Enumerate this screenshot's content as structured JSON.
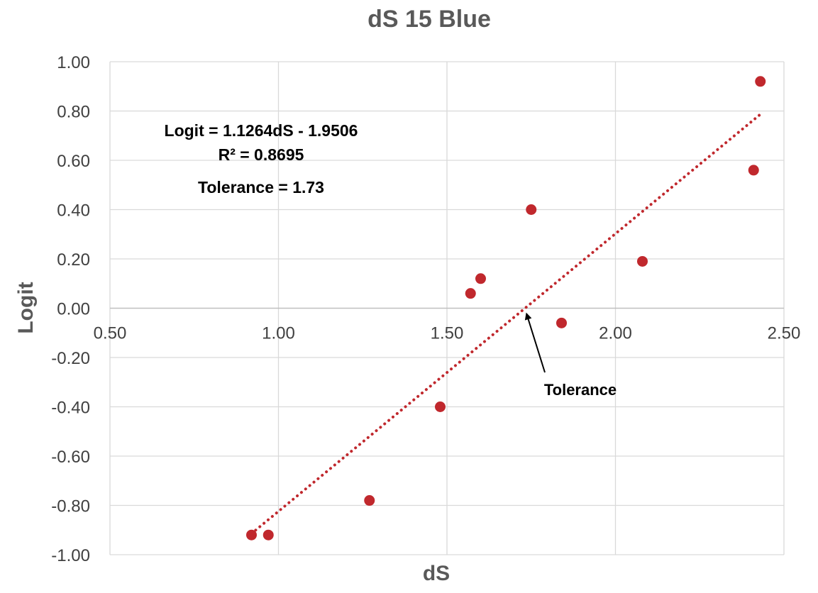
{
  "chart_data": {
    "type": "scatter",
    "title": "dS 15 Blue",
    "xlabel": "dS",
    "ylabel": "Logit",
    "xlim": [
      0.5,
      2.5
    ],
    "ylim": [
      -1.0,
      1.0
    ],
    "x_ticks": [
      "0.50",
      "1.00",
      "1.50",
      "2.00",
      "2.50"
    ],
    "y_ticks": [
      "1.00",
      "0.80",
      "0.60",
      "0.40",
      "0.20",
      "0.00",
      "-0.20",
      "-0.40",
      "-0.60",
      "-0.80",
      "-1.00"
    ],
    "x_tick_values": [
      0.5,
      1.0,
      1.5,
      2.0,
      2.5
    ],
    "y_tick_values": [
      1.0,
      0.8,
      0.6,
      0.4,
      0.2,
      0.0,
      -0.2,
      -0.4,
      -0.6,
      -0.8,
      -1.0
    ],
    "grid": true,
    "legend": "none",
    "point_color": "#C0282D",
    "trendline_color": "#C0282D",
    "points": [
      {
        "x": 0.92,
        "y": -0.92
      },
      {
        "x": 0.97,
        "y": -0.92
      },
      {
        "x": 1.27,
        "y": -0.78
      },
      {
        "x": 1.48,
        "y": -0.4
      },
      {
        "x": 1.57,
        "y": 0.06
      },
      {
        "x": 1.6,
        "y": 0.12
      },
      {
        "x": 1.75,
        "y": 0.4
      },
      {
        "x": 1.84,
        "y": -0.06
      },
      {
        "x": 2.08,
        "y": 0.19
      },
      {
        "x": 2.41,
        "y": 0.56
      },
      {
        "x": 2.43,
        "y": 0.92
      }
    ],
    "trendline": {
      "slope": 1.1264,
      "intercept": -1.9506,
      "x_range": [
        0.92,
        2.43
      ]
    },
    "annotations": {
      "equation": "Logit = 1.1264dS - 1.9506",
      "r_squared": "R² = 0.8695",
      "tolerance_value": "Tolerance = 1.73",
      "arrow_label": "Tolerance",
      "arrow_target": {
        "x": 1.73,
        "y": 0.0
      }
    }
  }
}
